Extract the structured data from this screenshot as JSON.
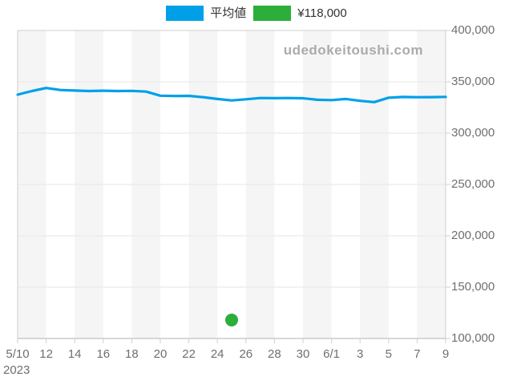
{
  "legend": {
    "items": [
      {
        "label": "平均値",
        "color": "#00a0e9"
      },
      {
        "label": "¥118,000",
        "color": "#2bae3a"
      }
    ]
  },
  "watermark": {
    "text": "udedokeitoushi.com"
  },
  "chart_data": {
    "type": "line",
    "title": "",
    "year_label": "2023",
    "x_dates": [
      "5/10",
      "5/11",
      "5/12",
      "5/13",
      "5/14",
      "5/15",
      "5/16",
      "5/17",
      "5/18",
      "5/19",
      "5/20",
      "5/21",
      "5/22",
      "5/23",
      "5/24",
      "5/25",
      "5/26",
      "5/27",
      "5/28",
      "5/29",
      "5/30",
      "5/31",
      "6/1",
      "6/2",
      "6/3",
      "6/4",
      "6/5",
      "6/6",
      "6/7",
      "6/8",
      "6/9"
    ],
    "x_tick_labels": [
      "5/10",
      "12",
      "14",
      "16",
      "18",
      "20",
      "22",
      "24",
      "26",
      "28",
      "30",
      "6/1",
      "3",
      "5",
      "7",
      "9"
    ],
    "ylim": [
      100000,
      400000
    ],
    "ytick_step": 50000,
    "ytick_labels": [
      "400,000",
      "350,000",
      "300,000",
      "250,000",
      "200,000",
      "150,000",
      "100,000"
    ],
    "grid": {
      "horizontal": true,
      "alternating_vertical_bands": true,
      "band_color": "#f5f5f5",
      "gridline_color": "#e6e6e6",
      "border_color": "#cfcfcf",
      "axis_line_color": "#b3b3b3",
      "tick_color": "#cfcfcf"
    },
    "series": [
      {
        "name": "平均値",
        "type": "line",
        "color": "#00a0e9",
        "values": [
          337500,
          341000,
          344000,
          342000,
          341500,
          341000,
          341300,
          341000,
          341200,
          340500,
          336500,
          336200,
          336300,
          335000,
          333300,
          331900,
          333000,
          334200,
          334100,
          334200,
          334000,
          332500,
          332200,
          333300,
          331500,
          330200,
          334500,
          335200,
          335000,
          335100,
          335300
        ]
      },
      {
        "name": "¥118,000",
        "type": "point",
        "color": "#2bae3a",
        "date": "5/25",
        "value": 118000
      }
    ]
  }
}
